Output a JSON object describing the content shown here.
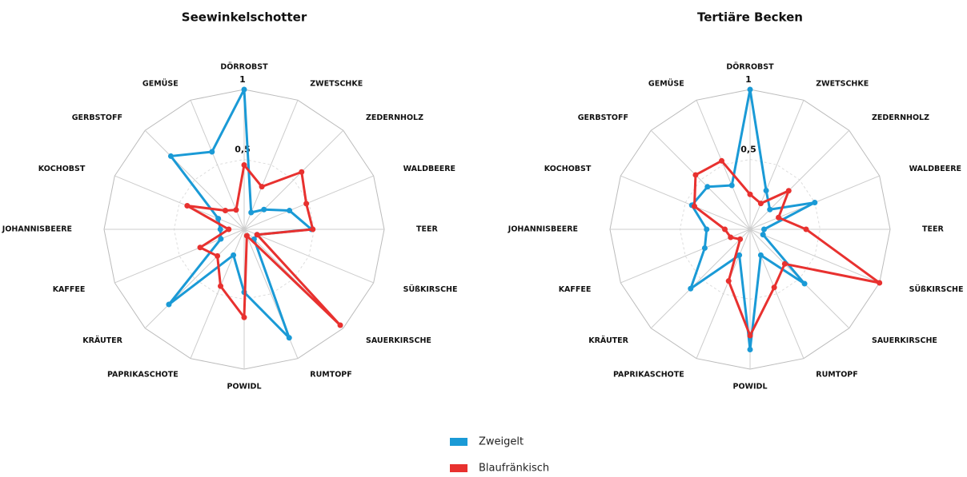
{
  "chart_data": [
    {
      "type": "radar",
      "title": "Seewinkelschotter",
      "categories": [
        "DÖRROBST",
        "ZWETSCHKE",
        "ZEDERNHOLZ",
        "WALDBEERE",
        "TEER",
        "SÜßKIRSCHE",
        "SAUERKIRSCHE",
        "RUMTOPF",
        "POWIDL",
        "PAPRIKASCHOTE",
        "KRÄUTER",
        "KAFFEE",
        "JOHANNISBEERE",
        "KOCHOBST",
        "GERBSTOFF",
        "GEMÜSE"
      ],
      "rlim": [
        0,
        1
      ],
      "rticks": [
        {
          "value": 0.5,
          "label": "0,5"
        },
        1
      ],
      "series": [
        {
          "name": "Zweigelt",
          "color": "#1a9ad6",
          "values": [
            1.0,
            0.13,
            0.2,
            0.35,
            0.48,
            0.1,
            0.1,
            0.84,
            0.45,
            0.2,
            0.76,
            0.18,
            0.17,
            0.2,
            0.74,
            0.6
          ]
        },
        {
          "name": "Blaufränkisch",
          "color": "#e8312f",
          "values": [
            0.46,
            0.33,
            0.58,
            0.48,
            0.49,
            0.1,
            0.97,
            0.05,
            0.63,
            0.44,
            0.27,
            0.34,
            0.11,
            0.44,
            0.19,
            0.15
          ]
        }
      ]
    },
    {
      "type": "radar",
      "title": "Tertiäre Becken",
      "categories": [
        "DÖRROBST",
        "ZWETSCHKE",
        "ZEDERNHOLZ",
        "WALDBEERE",
        "TEER",
        "SÜßKIRSCHE",
        "SAUERKIRSCHE",
        "RUMTOPF",
        "POWIDL",
        "PAPRIKASCHOTE",
        "KRÄUTER",
        "KAFFEE",
        "JOHANNISBEERE",
        "KOCHOBST",
        "GERBSTOFF",
        "GEMÜSE"
      ],
      "rlim": [
        0,
        1
      ],
      "rticks": [
        {
          "value": 0.5,
          "label": "0,5"
        },
        1
      ],
      "series": [
        {
          "color": "#1a9ad6",
          "values": [
            1.0,
            0.3,
            0.2,
            0.5,
            0.1,
            0.1,
            0.55,
            0.2,
            0.86,
            0.2,
            0.6,
            0.35,
            0.31,
            0.45,
            0.43,
            0.34
          ]
        },
        {
          "color": "#e8312f",
          "values": [
            0.25,
            0.2,
            0.39,
            0.22,
            0.4,
            1.0,
            0.35,
            0.45,
            0.76,
            0.4,
            0.1,
            0.15,
            0.18,
            0.43,
            0.55,
            0.53
          ]
        }
      ]
    }
  ]
}
